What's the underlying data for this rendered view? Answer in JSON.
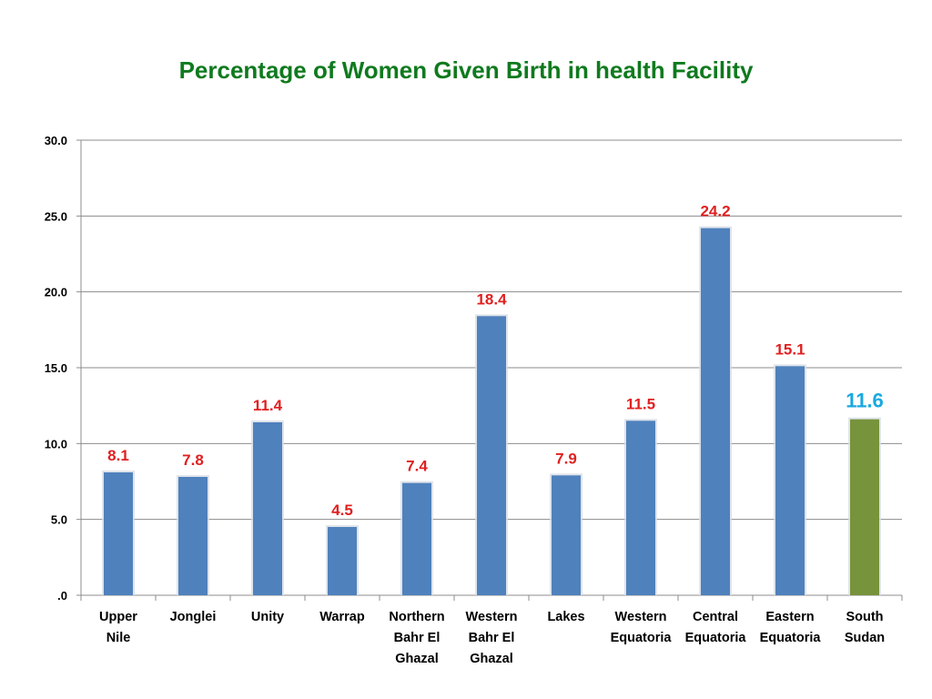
{
  "chart_data": {
    "type": "bar",
    "title": "Percentage of Women Given Birth in health Facility",
    "xlabel": "",
    "ylabel": "",
    "ylim": [
      0,
      30
    ],
    "yticks": [
      {
        "value": 0,
        "label": ".0"
      },
      {
        "value": 5,
        "label": "5.0"
      },
      {
        "value": 10,
        "label": "10.0"
      },
      {
        "value": 15,
        "label": "15.0"
      },
      {
        "value": 20,
        "label": "20.0"
      },
      {
        "value": 25,
        "label": "25.0"
      },
      {
        "value": 30,
        "label": "30.0"
      }
    ],
    "grid": true,
    "legend": "none",
    "categories": [
      [
        "Upper",
        "Nile"
      ],
      [
        "Jonglei"
      ],
      [
        "Unity"
      ],
      [
        "Warrap"
      ],
      [
        "Northern",
        "Bahr El",
        "Ghazal"
      ],
      [
        "Western",
        "Bahr El",
        "Ghazal"
      ],
      [
        "Lakes"
      ],
      [
        "Western",
        "Equatoria"
      ],
      [
        "Central",
        "Equatoria"
      ],
      [
        "Eastern",
        "Equatoria"
      ],
      [
        "South",
        "Sudan"
      ]
    ],
    "values": [
      8.1,
      7.8,
      11.4,
      4.5,
      7.4,
      18.4,
      7.9,
      11.5,
      24.2,
      15.1,
      11.6
    ],
    "data_labels": [
      "8.1",
      "7.8",
      "11.4",
      "4.5",
      "7.4",
      "18.4",
      "7.9",
      "11.5",
      "24.2",
      "15.1",
      "11.6"
    ],
    "highlight_index": 10,
    "colors": {
      "bar": "#4f81bd",
      "bar_highlight": "#77933c",
      "label": "#e02020",
      "label_highlight": "#19a9e0",
      "title": "#0f7a1e",
      "grid": "#8c8c8c"
    }
  }
}
